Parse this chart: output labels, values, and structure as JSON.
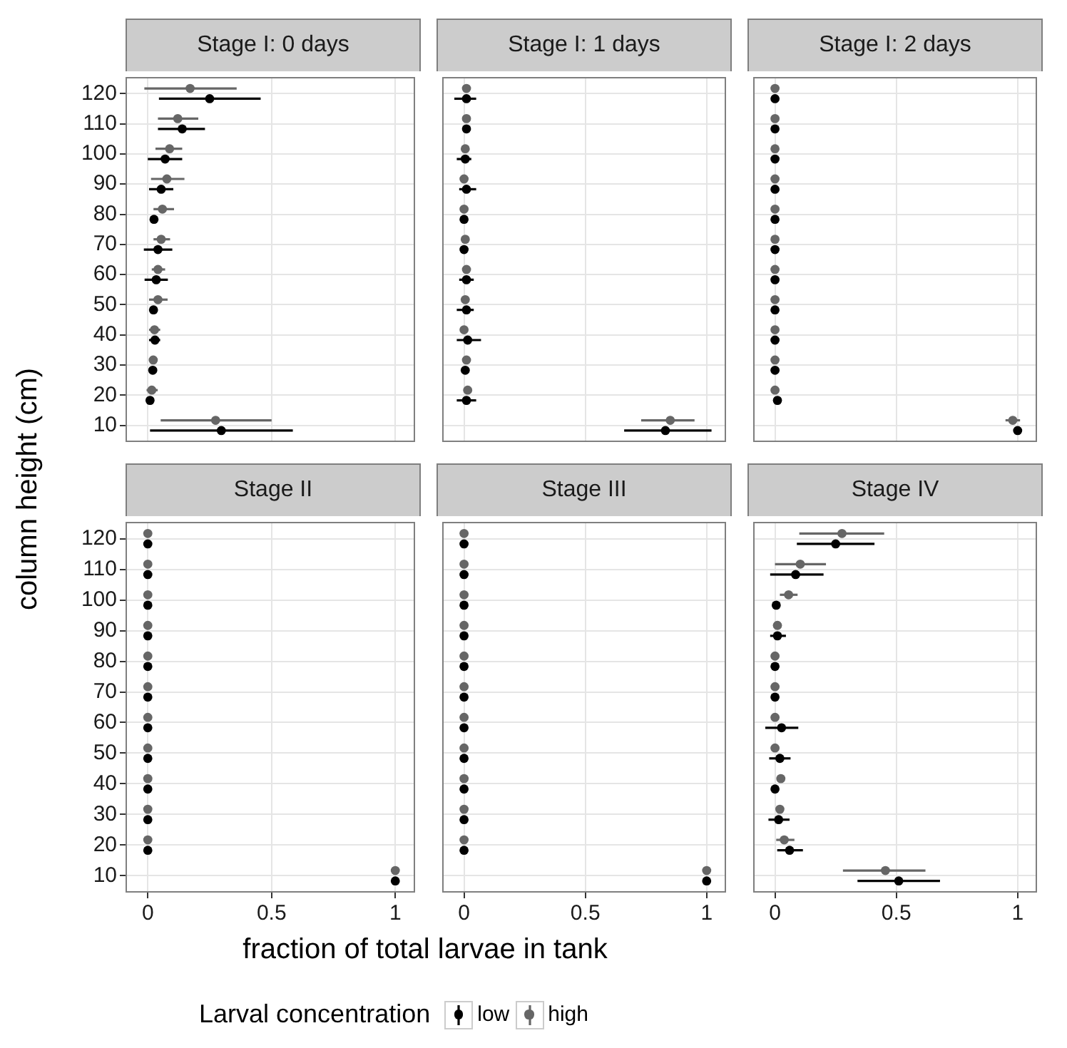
{
  "chart_data": [
    {
      "type": "scatter",
      "title": "Stage I: 0 days",
      "ylabel": "column height (cm)",
      "xlim": [
        -0.09,
        1.08
      ],
      "xticks": [
        0,
        0.5,
        1
      ],
      "ylim": [
        4.5,
        125.5
      ],
      "yticks": [
        10,
        20,
        30,
        40,
        50,
        60,
        70,
        80,
        90,
        100,
        110,
        120
      ],
      "grid": true,
      "marker": "circle",
      "tick_labels": "y",
      "series": [
        {
          "color": "#000000",
          "x": [
            0.25,
            0.139,
            0.07,
            0.054,
            0.025,
            0.041,
            0.034,
            0.023,
            0.029,
            0.02,
            0.009,
            0.297
          ],
          "values": [
            118.3,
            108.3,
            98.3,
            88.3,
            78.3,
            68.3,
            58.3,
            48.3,
            38.3,
            28.3,
            18.3,
            8.3
          ],
          "xerrors": [
            [
              0.045,
              0.456
            ],
            [
              0.041,
              0.231
            ],
            [
              0,
              0.139
            ],
            [
              0.005,
              0.103
            ],
            null,
            [
              -0.016,
              0.099
            ],
            [
              -0.013,
              0.081
            ],
            null,
            [
              0.005,
              0.05
            ],
            null,
            null,
            [
              0.009,
              0.586
            ]
          ]
        },
        {
          "color": "#666666",
          "x": [
            0.171,
            0.121,
            0.088,
            0.077,
            0.059,
            0.054,
            0.041,
            0.041,
            0.027,
            0.022,
            0.016,
            0.274
          ],
          "values": [
            121.7,
            111.7,
            101.7,
            91.7,
            81.7,
            71.7,
            61.7,
            51.7,
            41.7,
            31.7,
            21.7,
            11.7
          ],
          "xerrors": [
            [
              -0.014,
              0.359
            ],
            [
              0.041,
              0.204
            ],
            [
              0.031,
              0.139
            ],
            [
              0.013,
              0.148
            ],
            [
              0.023,
              0.106
            ],
            [
              0.023,
              0.09
            ],
            [
              0.016,
              0.07
            ],
            [
              0.005,
              0.08
            ],
            [
              0.005,
              0.05
            ],
            null,
            [
              -0.005,
              0.04
            ],
            [
              0.052,
              0.5
            ]
          ]
        }
      ]
    },
    {
      "type": "scatter",
      "title": "Stage I: 1 days",
      "xlim": [
        -0.09,
        1.08
      ],
      "xticks": [
        0,
        0.5,
        1
      ],
      "ylim": [
        4.5,
        125.5
      ],
      "yticks": [
        10,
        20,
        30,
        40,
        50,
        60,
        70,
        80,
        90,
        100,
        110,
        120
      ],
      "grid": true,
      "marker": "circle",
      "tick_labels": false,
      "series": [
        {
          "color": "#000000",
          "x": [
            0.01,
            0.01,
            0.005,
            0.01,
            0,
            0,
            0.01,
            0.01,
            0.015,
            0.005,
            0.01,
            0.83
          ],
          "values": [
            118.3,
            108.3,
            98.3,
            88.3,
            78.3,
            68.3,
            58.3,
            48.3,
            38.3,
            28.3,
            18.3,
            8.3
          ],
          "xerrors": [
            [
              -0.04,
              0.05
            ],
            null,
            [
              -0.03,
              0.03
            ],
            [
              -0.02,
              0.05
            ],
            null,
            null,
            [
              -0.02,
              0.04
            ],
            [
              -0.03,
              0.04
            ],
            [
              -0.03,
              0.07
            ],
            null,
            [
              -0.03,
              0.05
            ],
            [
              0.66,
              1.02
            ]
          ]
        },
        {
          "color": "#666666",
          "x": [
            0.01,
            0.01,
            0.005,
            0,
            0,
            0.005,
            0.01,
            0.005,
            0,
            0.01,
            0.015,
            0.85
          ],
          "values": [
            121.7,
            111.7,
            101.7,
            91.7,
            81.7,
            71.7,
            61.7,
            51.7,
            41.7,
            31.7,
            21.7,
            11.7
          ],
          "xerrors": [
            null,
            null,
            null,
            null,
            null,
            null,
            null,
            null,
            null,
            null,
            null,
            [
              0.73,
              0.95
            ]
          ]
        }
      ]
    },
    {
      "type": "scatter",
      "title": "Stage I: 2 days",
      "xlim": [
        -0.09,
        1.08
      ],
      "xticks": [
        0,
        0.5,
        1
      ],
      "ylim": [
        4.5,
        125.5
      ],
      "yticks": [
        10,
        20,
        30,
        40,
        50,
        60,
        70,
        80,
        90,
        100,
        110,
        120
      ],
      "grid": true,
      "marker": "circle",
      "tick_labels": false,
      "series": [
        {
          "color": "#000000",
          "x": [
            0,
            0,
            0,
            0,
            0,
            0,
            0,
            0,
            0,
            0,
            0.01,
            1
          ],
          "values": [
            118.3,
            108.3,
            98.3,
            88.3,
            78.3,
            68.3,
            58.3,
            48.3,
            38.3,
            28.3,
            18.3,
            8.3
          ]
        },
        {
          "color": "#666666",
          "x": [
            0,
            0,
            0,
            0,
            0,
            0,
            0,
            0,
            0,
            0,
            0,
            0.98
          ],
          "values": [
            121.7,
            111.7,
            101.7,
            91.7,
            81.7,
            71.7,
            61.7,
            51.7,
            41.7,
            31.7,
            21.7,
            11.7
          ],
          "xerrors": [
            null,
            null,
            null,
            null,
            null,
            null,
            null,
            null,
            null,
            null,
            null,
            [
              0.95,
              1.01
            ]
          ]
        }
      ]
    },
    {
      "type": "scatter",
      "title": "Stage II",
      "xlim": [
        -0.09,
        1.08
      ],
      "xticks": [
        0,
        0.5,
        1
      ],
      "ylim": [
        4.5,
        125.5
      ],
      "yticks": [
        10,
        20,
        30,
        40,
        50,
        60,
        70,
        80,
        90,
        100,
        110,
        120
      ],
      "grid": true,
      "marker": "circle",
      "series": [
        {
          "color": "#000000",
          "x": [
            0,
            0,
            0,
            0,
            0,
            0,
            0,
            0,
            0,
            0,
            0,
            1
          ],
          "values": [
            118.3,
            108.3,
            98.3,
            88.3,
            78.3,
            68.3,
            58.3,
            48.3,
            38.3,
            28.3,
            18.3,
            8.3
          ]
        },
        {
          "color": "#666666",
          "x": [
            0,
            0,
            0,
            0,
            0,
            0,
            0,
            0,
            0,
            0,
            0,
            1
          ],
          "values": [
            121.7,
            111.7,
            101.7,
            91.7,
            81.7,
            71.7,
            61.7,
            51.7,
            41.7,
            31.7,
            21.7,
            11.7
          ]
        }
      ]
    },
    {
      "type": "scatter",
      "title": "Stage III",
      "xlabel": "fraction of total larvae in tank",
      "legend": "bottom",
      "legend_title": "Larval concentration",
      "xlim": [
        -0.09,
        1.08
      ],
      "xticks": [
        0,
        0.5,
        1
      ],
      "ylim": [
        4.5,
        125.5
      ],
      "yticks": [
        10,
        20,
        30,
        40,
        50,
        60,
        70,
        80,
        90,
        100,
        110,
        120
      ],
      "grid": true,
      "marker": "circle",
      "tick_labels": "x",
      "series": [
        {
          "name": "low",
          "color": "#000000",
          "x": [
            0,
            0,
            0,
            0,
            0,
            0,
            0,
            0,
            0,
            0,
            0,
            1
          ],
          "values": [
            118.3,
            108.3,
            98.3,
            88.3,
            78.3,
            68.3,
            58.3,
            48.3,
            38.3,
            28.3,
            18.3,
            8.3
          ]
        },
        {
          "name": "high",
          "color": "#666666",
          "x": [
            0,
            0,
            0,
            0,
            0,
            0,
            0,
            0,
            0,
            0,
            0,
            1
          ],
          "values": [
            121.7,
            111.7,
            101.7,
            91.7,
            81.7,
            71.7,
            61.7,
            51.7,
            41.7,
            31.7,
            21.7,
            11.7
          ]
        }
      ]
    },
    {
      "type": "scatter",
      "title": "Stage IV",
      "xlim": [
        -0.09,
        1.08
      ],
      "xticks": [
        0,
        0.5,
        1
      ],
      "ylim": [
        4.5,
        125.5
      ],
      "yticks": [
        10,
        20,
        30,
        40,
        50,
        60,
        70,
        80,
        90,
        100,
        110,
        120
      ],
      "grid": true,
      "marker": "circle",
      "tick_labels": "x",
      "series": [
        {
          "color": "#000000",
          "x": [
            0.25,
            0.085,
            0.005,
            0.01,
            0,
            0,
            0.027,
            0.02,
            0,
            0.015,
            0.06,
            0.51
          ],
          "values": [
            118.3,
            108.3,
            98.3,
            88.3,
            78.3,
            68.3,
            58.3,
            48.3,
            38.3,
            28.3,
            18.3,
            8.3
          ],
          "xerrors": [
            [
              0.09,
              0.41
            ],
            [
              -0.02,
              0.2
            ],
            null,
            [
              -0.02,
              0.045
            ],
            null,
            null,
            [
              -0.04,
              0.096
            ],
            [
              -0.024,
              0.064
            ],
            null,
            [
              -0.027,
              0.06
            ],
            [
              0.009,
              0.115
            ],
            [
              0.34,
              0.68
            ]
          ]
        },
        {
          "color": "#666666",
          "x": [
            0.276,
            0.104,
            0.056,
            0.01,
            0,
            0,
            0,
            0,
            0.024,
            0.02,
            0.038,
            0.455
          ],
          "values": [
            121.7,
            111.7,
            101.7,
            91.7,
            81.7,
            71.7,
            61.7,
            51.7,
            41.7,
            31.7,
            21.7,
            11.7
          ],
          "xerrors": [
            [
              0.1,
              0.45
            ],
            [
              0,
              0.21
            ],
            [
              0.02,
              0.093
            ],
            null,
            null,
            null,
            null,
            null,
            null,
            null,
            [
              0.005,
              0.08
            ],
            [
              0.28,
              0.62
            ]
          ]
        }
      ]
    }
  ]
}
